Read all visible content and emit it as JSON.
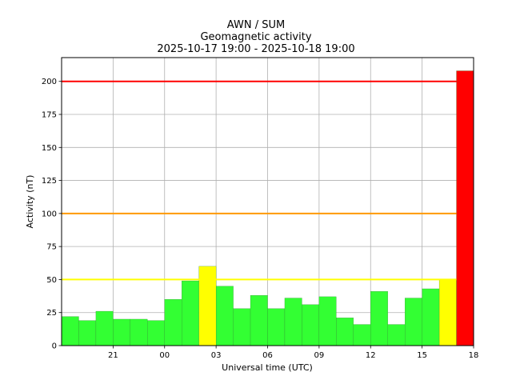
{
  "chart_data": {
    "type": "bar",
    "title": "AWN / SUM",
    "subtitle": "Geomagnetic activity",
    "time_range": "2025-10-17 19:00 - 2025-10-18 19:00",
    "xlabel": "Universal time (UTC)",
    "ylabel": "Activity (nT)",
    "xlim": [
      -1.0,
      23.0
    ],
    "ylim": [
      0,
      218
    ],
    "x_ticks": [
      {
        "x": 2,
        "label": "21"
      },
      {
        "x": 5,
        "label": "00"
      },
      {
        "x": 8,
        "label": "03"
      },
      {
        "x": 11,
        "label": "06"
      },
      {
        "x": 14,
        "label": "09"
      },
      {
        "x": 17,
        "label": "12"
      },
      {
        "x": 20,
        "label": "15"
      },
      {
        "x": 23,
        "label": "18"
      }
    ],
    "y_ticks": [
      0,
      25,
      50,
      75,
      100,
      125,
      150,
      175,
      200
    ],
    "grid": true,
    "bars": [
      {
        "hour": "19:00",
        "value": 22,
        "color": "#33ff33"
      },
      {
        "hour": "20:00",
        "value": 19,
        "color": "#33ff33"
      },
      {
        "hour": "21:00",
        "value": 26,
        "color": "#33ff33"
      },
      {
        "hour": "22:00",
        "value": 20,
        "color": "#33ff33"
      },
      {
        "hour": "23:00",
        "value": 20,
        "color": "#33ff33"
      },
      {
        "hour": "00:00",
        "value": 19,
        "color": "#33ff33"
      },
      {
        "hour": "01:00",
        "value": 35,
        "color": "#33ff33"
      },
      {
        "hour": "02:00",
        "value": 49,
        "color": "#33ff33"
      },
      {
        "hour": "03:00",
        "value": 60,
        "color": "#ffff00"
      },
      {
        "hour": "04:00",
        "value": 45,
        "color": "#33ff33"
      },
      {
        "hour": "05:00",
        "value": 28,
        "color": "#33ff33"
      },
      {
        "hour": "06:00",
        "value": 38,
        "color": "#33ff33"
      },
      {
        "hour": "07:00",
        "value": 28,
        "color": "#33ff33"
      },
      {
        "hour": "08:00",
        "value": 36,
        "color": "#33ff33"
      },
      {
        "hour": "09:00",
        "value": 31,
        "color": "#33ff33"
      },
      {
        "hour": "10:00",
        "value": 37,
        "color": "#33ff33"
      },
      {
        "hour": "11:00",
        "value": 21,
        "color": "#33ff33"
      },
      {
        "hour": "12:00",
        "value": 16,
        "color": "#33ff33"
      },
      {
        "hour": "13:00",
        "value": 41,
        "color": "#33ff33"
      },
      {
        "hour": "14:00",
        "value": 16,
        "color": "#33ff33"
      },
      {
        "hour": "15:00",
        "value": 36,
        "color": "#33ff33"
      },
      {
        "hour": "16:00",
        "value": 43,
        "color": "#33ff33"
      },
      {
        "hour": "17:00",
        "value": 50,
        "color": "#ffff00"
      },
      {
        "hour": "18:00",
        "value": 208,
        "color": "#ff0000"
      }
    ],
    "thresholds": [
      {
        "value": 50,
        "color": "#ffff00"
      },
      {
        "value": 100,
        "color": "#ff9900"
      },
      {
        "value": 200,
        "color": "#ff0000"
      }
    ]
  }
}
